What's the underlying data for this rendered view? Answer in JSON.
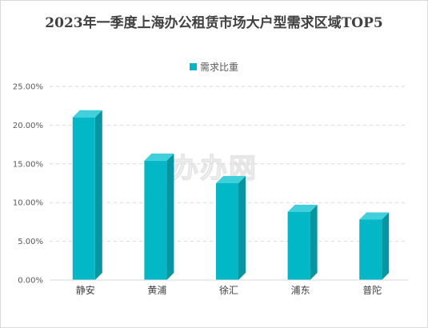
{
  "chart_data": {
    "type": "bar",
    "title": "2023年一季度上海办公租赁市场大户型需求区域TOP5",
    "categories": [
      "静安",
      "黄浦",
      "徐汇",
      "浦东",
      "普陀"
    ],
    "series": [
      {
        "name": "需求比重",
        "values": [
          21.0,
          15.4,
          12.5,
          8.8,
          7.8
        ]
      }
    ],
    "yticks": [
      "0.00%",
      "5.00%",
      "10.00%",
      "15.00%",
      "20.00%",
      "25.00%"
    ],
    "ylim": [
      0,
      25
    ],
    "grid": true,
    "legend_position": "top",
    "colors": {
      "bar_front": "#03b8c6",
      "bar_side": "#0596a2",
      "bar_top": "#3fd0dc",
      "grid": "#d9d9d9"
    },
    "watermark": "办办网"
  }
}
